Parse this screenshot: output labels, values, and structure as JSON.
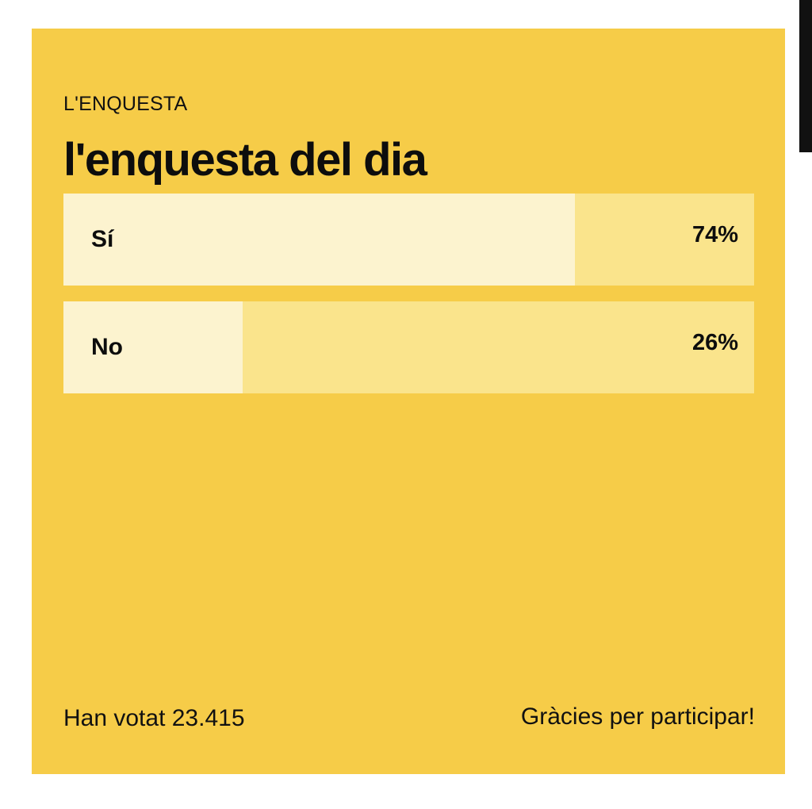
{
  "poll": {
    "eyebrow": "L'ENQUESTA",
    "title": "l'enquesta del dia",
    "options": [
      {
        "label": "Sí",
        "percent_text": "74%",
        "percent": 74
      },
      {
        "label": "No",
        "percent_text": "26%",
        "percent": 26
      }
    ],
    "votes_text": "Han votat 23.415",
    "thanks_text": "Gràcies per participar!"
  },
  "colors": {
    "card": "#f6cc48",
    "bar_background": "#fae48c",
    "bar_fill": "#fcf3cf",
    "text": "#0d0d0d"
  }
}
